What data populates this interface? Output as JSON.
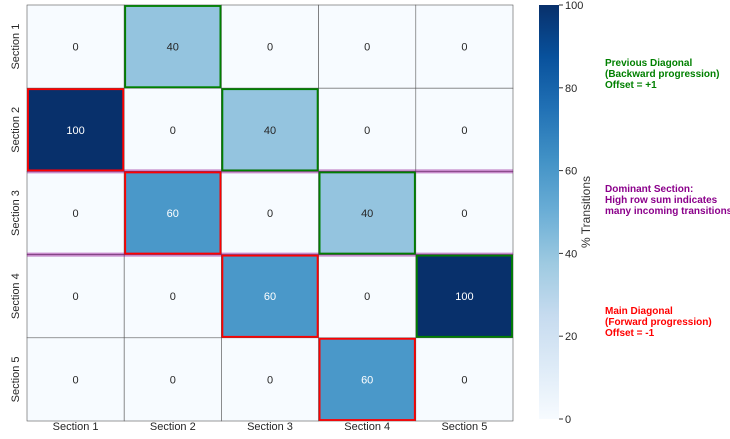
{
  "chart_data": {
    "type": "heatmap",
    "rows": [
      "Section 1",
      "Section 2",
      "Section 3",
      "Section 4",
      "Section 5"
    ],
    "columns": [
      "Section 1",
      "Section 2",
      "Section 3",
      "Section 4",
      "Section 5"
    ],
    "values": [
      [
        0,
        40,
        0,
        0,
        0
      ],
      [
        100,
        0,
        40,
        0,
        0
      ],
      [
        0,
        60,
        0,
        40,
        0
      ],
      [
        0,
        0,
        60,
        0,
        100
      ],
      [
        0,
        0,
        0,
        60,
        0
      ]
    ],
    "colorbar": {
      "label": "% Transitions",
      "range": [
        0,
        100
      ],
      "ticks": [
        0,
        20,
        40,
        60,
        80,
        100
      ],
      "colormap": "Blues"
    },
    "highlights": {
      "previous_diagonal_color": "#008000",
      "main_diagonal_color": "#ff0000",
      "dominant_row_color": "#8b008b",
      "dominant_row": "Section 3"
    },
    "annotations": {
      "previous_diagonal": [
        "Previous Diagonal",
        "(Backward progression)",
        "Offset = +1"
      ],
      "dominant_section": [
        "Dominant Section:",
        "High row sum indicates",
        "many incoming transitions"
      ],
      "main_diagonal": [
        "Main Diagonal",
        "(Forward progression)",
        "Offset = -1"
      ]
    }
  }
}
